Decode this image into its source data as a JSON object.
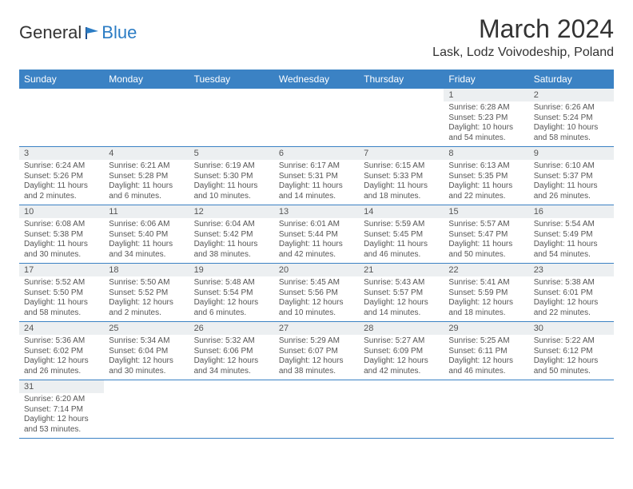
{
  "logo": {
    "text1": "General",
    "text2": "Blue"
  },
  "title": "March 2024",
  "location": "Lask, Lodz Voivodeship, Poland",
  "colors": {
    "header_bg": "#3b82c4",
    "header_fg": "#ffffff",
    "daynum_bg": "#eceff1",
    "row_border": "#3b82c4",
    "logo_blue": "#2b7cc4"
  },
  "weekdays": [
    "Sunday",
    "Monday",
    "Tuesday",
    "Wednesday",
    "Thursday",
    "Friday",
    "Saturday"
  ],
  "weeks": [
    [
      {
        "blank": true
      },
      {
        "blank": true
      },
      {
        "blank": true
      },
      {
        "blank": true
      },
      {
        "blank": true
      },
      {
        "day": "1",
        "sunrise": "Sunrise: 6:28 AM",
        "sunset": "Sunset: 5:23 PM",
        "daylight": "Daylight: 10 hours and 54 minutes."
      },
      {
        "day": "2",
        "sunrise": "Sunrise: 6:26 AM",
        "sunset": "Sunset: 5:24 PM",
        "daylight": "Daylight: 10 hours and 58 minutes."
      }
    ],
    [
      {
        "day": "3",
        "sunrise": "Sunrise: 6:24 AM",
        "sunset": "Sunset: 5:26 PM",
        "daylight": "Daylight: 11 hours and 2 minutes."
      },
      {
        "day": "4",
        "sunrise": "Sunrise: 6:21 AM",
        "sunset": "Sunset: 5:28 PM",
        "daylight": "Daylight: 11 hours and 6 minutes."
      },
      {
        "day": "5",
        "sunrise": "Sunrise: 6:19 AM",
        "sunset": "Sunset: 5:30 PM",
        "daylight": "Daylight: 11 hours and 10 minutes."
      },
      {
        "day": "6",
        "sunrise": "Sunrise: 6:17 AM",
        "sunset": "Sunset: 5:31 PM",
        "daylight": "Daylight: 11 hours and 14 minutes."
      },
      {
        "day": "7",
        "sunrise": "Sunrise: 6:15 AM",
        "sunset": "Sunset: 5:33 PM",
        "daylight": "Daylight: 11 hours and 18 minutes."
      },
      {
        "day": "8",
        "sunrise": "Sunrise: 6:13 AM",
        "sunset": "Sunset: 5:35 PM",
        "daylight": "Daylight: 11 hours and 22 minutes."
      },
      {
        "day": "9",
        "sunrise": "Sunrise: 6:10 AM",
        "sunset": "Sunset: 5:37 PM",
        "daylight": "Daylight: 11 hours and 26 minutes."
      }
    ],
    [
      {
        "day": "10",
        "sunrise": "Sunrise: 6:08 AM",
        "sunset": "Sunset: 5:38 PM",
        "daylight": "Daylight: 11 hours and 30 minutes."
      },
      {
        "day": "11",
        "sunrise": "Sunrise: 6:06 AM",
        "sunset": "Sunset: 5:40 PM",
        "daylight": "Daylight: 11 hours and 34 minutes."
      },
      {
        "day": "12",
        "sunrise": "Sunrise: 6:04 AM",
        "sunset": "Sunset: 5:42 PM",
        "daylight": "Daylight: 11 hours and 38 minutes."
      },
      {
        "day": "13",
        "sunrise": "Sunrise: 6:01 AM",
        "sunset": "Sunset: 5:44 PM",
        "daylight": "Daylight: 11 hours and 42 minutes."
      },
      {
        "day": "14",
        "sunrise": "Sunrise: 5:59 AM",
        "sunset": "Sunset: 5:45 PM",
        "daylight": "Daylight: 11 hours and 46 minutes."
      },
      {
        "day": "15",
        "sunrise": "Sunrise: 5:57 AM",
        "sunset": "Sunset: 5:47 PM",
        "daylight": "Daylight: 11 hours and 50 minutes."
      },
      {
        "day": "16",
        "sunrise": "Sunrise: 5:54 AM",
        "sunset": "Sunset: 5:49 PM",
        "daylight": "Daylight: 11 hours and 54 minutes."
      }
    ],
    [
      {
        "day": "17",
        "sunrise": "Sunrise: 5:52 AM",
        "sunset": "Sunset: 5:50 PM",
        "daylight": "Daylight: 11 hours and 58 minutes."
      },
      {
        "day": "18",
        "sunrise": "Sunrise: 5:50 AM",
        "sunset": "Sunset: 5:52 PM",
        "daylight": "Daylight: 12 hours and 2 minutes."
      },
      {
        "day": "19",
        "sunrise": "Sunrise: 5:48 AM",
        "sunset": "Sunset: 5:54 PM",
        "daylight": "Daylight: 12 hours and 6 minutes."
      },
      {
        "day": "20",
        "sunrise": "Sunrise: 5:45 AM",
        "sunset": "Sunset: 5:56 PM",
        "daylight": "Daylight: 12 hours and 10 minutes."
      },
      {
        "day": "21",
        "sunrise": "Sunrise: 5:43 AM",
        "sunset": "Sunset: 5:57 PM",
        "daylight": "Daylight: 12 hours and 14 minutes."
      },
      {
        "day": "22",
        "sunrise": "Sunrise: 5:41 AM",
        "sunset": "Sunset: 5:59 PM",
        "daylight": "Daylight: 12 hours and 18 minutes."
      },
      {
        "day": "23",
        "sunrise": "Sunrise: 5:38 AM",
        "sunset": "Sunset: 6:01 PM",
        "daylight": "Daylight: 12 hours and 22 minutes."
      }
    ],
    [
      {
        "day": "24",
        "sunrise": "Sunrise: 5:36 AM",
        "sunset": "Sunset: 6:02 PM",
        "daylight": "Daylight: 12 hours and 26 minutes."
      },
      {
        "day": "25",
        "sunrise": "Sunrise: 5:34 AM",
        "sunset": "Sunset: 6:04 PM",
        "daylight": "Daylight: 12 hours and 30 minutes."
      },
      {
        "day": "26",
        "sunrise": "Sunrise: 5:32 AM",
        "sunset": "Sunset: 6:06 PM",
        "daylight": "Daylight: 12 hours and 34 minutes."
      },
      {
        "day": "27",
        "sunrise": "Sunrise: 5:29 AM",
        "sunset": "Sunset: 6:07 PM",
        "daylight": "Daylight: 12 hours and 38 minutes."
      },
      {
        "day": "28",
        "sunrise": "Sunrise: 5:27 AM",
        "sunset": "Sunset: 6:09 PM",
        "daylight": "Daylight: 12 hours and 42 minutes."
      },
      {
        "day": "29",
        "sunrise": "Sunrise: 5:25 AM",
        "sunset": "Sunset: 6:11 PM",
        "daylight": "Daylight: 12 hours and 46 minutes."
      },
      {
        "day": "30",
        "sunrise": "Sunrise: 5:22 AM",
        "sunset": "Sunset: 6:12 PM",
        "daylight": "Daylight: 12 hours and 50 minutes."
      }
    ],
    [
      {
        "day": "31",
        "sunrise": "Sunrise: 6:20 AM",
        "sunset": "Sunset: 7:14 PM",
        "daylight": "Daylight: 12 hours and 53 minutes."
      },
      {
        "blank": true
      },
      {
        "blank": true
      },
      {
        "blank": true
      },
      {
        "blank": true
      },
      {
        "blank": true
      },
      {
        "blank": true
      }
    ]
  ]
}
